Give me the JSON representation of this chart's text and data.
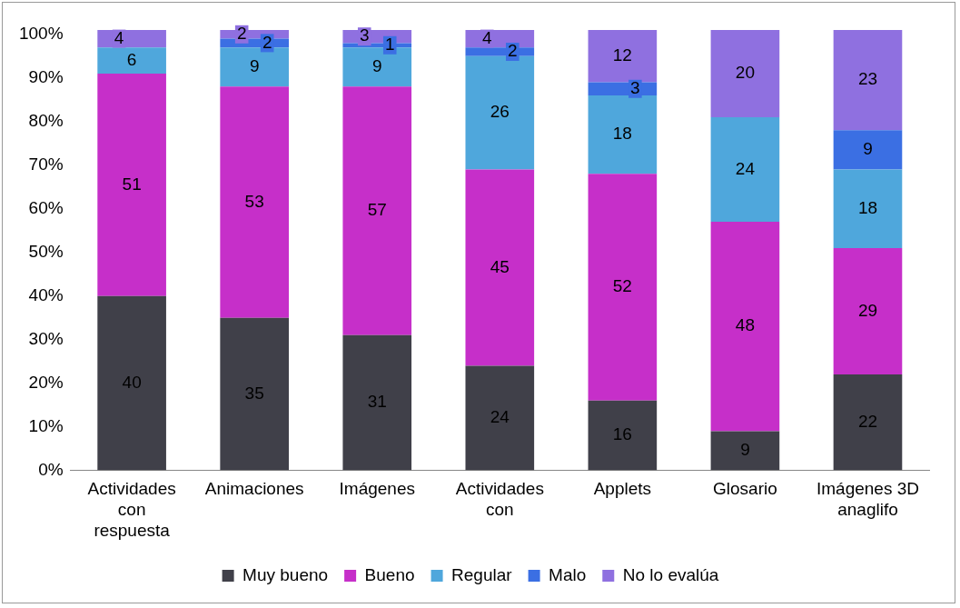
{
  "chart_data": {
    "type": "bar",
    "stacked": true,
    "categories": [
      "Actividades\ncon\nrespuesta",
      "Animaciones",
      "Imágenes",
      "Actividades\ncon",
      "Applets",
      "Glosario",
      "Imágenes 3D\nanaglifo"
    ],
    "series": [
      {
        "name": "Muy bueno",
        "color": "#404049",
        "values": [
          40,
          35,
          31,
          24,
          16,
          9,
          22
        ]
      },
      {
        "name": "Bueno",
        "color": "#c62fc9",
        "values": [
          51,
          53,
          57,
          45,
          52,
          48,
          29
        ]
      },
      {
        "name": "Regular",
        "color": "#4fa7dc",
        "values": [
          6,
          9,
          9,
          26,
          18,
          24,
          18
        ]
      },
      {
        "name": "Malo",
        "color": "#3b6fe3",
        "values": [
          null,
          2,
          1,
          2,
          3,
          null,
          9
        ]
      },
      {
        "name": "No lo evalúa",
        "color": "#8f70e0",
        "values": [
          4,
          2,
          3,
          4,
          12,
          20,
          23
        ]
      }
    ],
    "ylim": [
      0,
      101
    ],
    "yticks": [
      {
        "value": 0,
        "label": "0%"
      },
      {
        "value": 10,
        "label": "10%"
      },
      {
        "value": 20,
        "label": "20%"
      },
      {
        "value": 30,
        "label": "30%"
      },
      {
        "value": 40,
        "label": "40%"
      },
      {
        "value": 50,
        "label": "50%"
      },
      {
        "value": 60,
        "label": "60%"
      },
      {
        "value": 70,
        "label": "70%"
      },
      {
        "value": 80,
        "label": "80%"
      },
      {
        "value": 90,
        "label": "90%"
      },
      {
        "value": 100,
        "label": "100%"
      }
    ],
    "grid": false,
    "legend": "bottom",
    "data_labels": true
  }
}
